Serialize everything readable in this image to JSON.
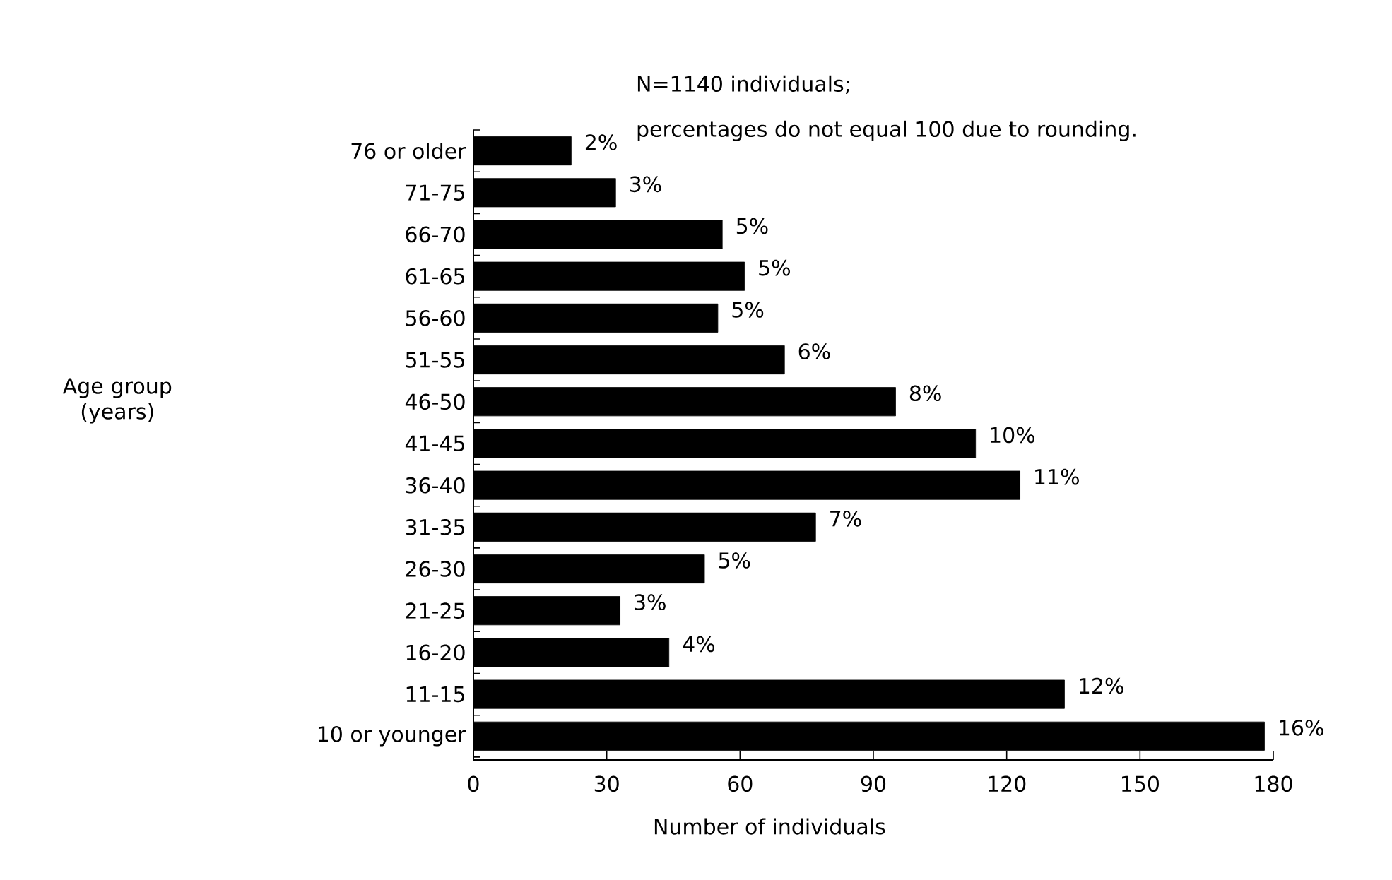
{
  "chart_data": {
    "type": "bar",
    "orientation": "horizontal",
    "title": "N=1140 individuals;",
    "subtitle": "percentages do not equal 100 due to rounding.",
    "xlabel": "Number of individuals",
    "categories": [
      "76 or older",
      "71-75",
      "66-70",
      "61-65",
      "56-60",
      "51-55",
      "46-50",
      "41-45",
      "36-40",
      "31-35",
      "26-30",
      "21-25",
      "16-20",
      "11-15",
      "10 or younger"
    ],
    "values": [
      22,
      32,
      56,
      61,
      55,
      70,
      95,
      113,
      123,
      77,
      52,
      33,
      44,
      133,
      178
    ],
    "annotations": [
      "Age group (years)",
      {
        "text": "2%",
        "x": 22,
        "y": "76 or older"
      },
      {
        "text": "3%",
        "x": 32,
        "y": "71-75"
      },
      {
        "text": "5%",
        "x": 56,
        "y": "66-70"
      },
      {
        "text": "5%",
        "x": 61,
        "y": "61-65"
      },
      {
        "text": "5%",
        "x": 55,
        "y": "56-60"
      },
      {
        "text": "6%",
        "x": 70,
        "y": "51-55"
      },
      {
        "text": "8%",
        "x": 95,
        "y": "46-50"
      },
      {
        "text": "10%",
        "x": 113,
        "y": "41-45"
      },
      {
        "text": "11%",
        "x": 123,
        "y": "36-40"
      },
      {
        "text": "7%",
        "x": 77,
        "y": "31-35"
      },
      {
        "text": "5%",
        "x": 52,
        "y": "26-30"
      },
      {
        "text": "3%",
        "x": 33,
        "y": "21-25"
      },
      {
        "text": "4%",
        "x": 44,
        "y": "16-20"
      },
      {
        "text": "12%",
        "x": 133,
        "y": "11-15"
      },
      {
        "text": "16%",
        "x": 178,
        "y": "10 or younger"
      }
    ],
    "color": "#000000",
    "xlim": [
      0,
      180
    ],
    "xticks": [
      0,
      30,
      60,
      90,
      120,
      150,
      180
    ],
    "grid": false
  }
}
